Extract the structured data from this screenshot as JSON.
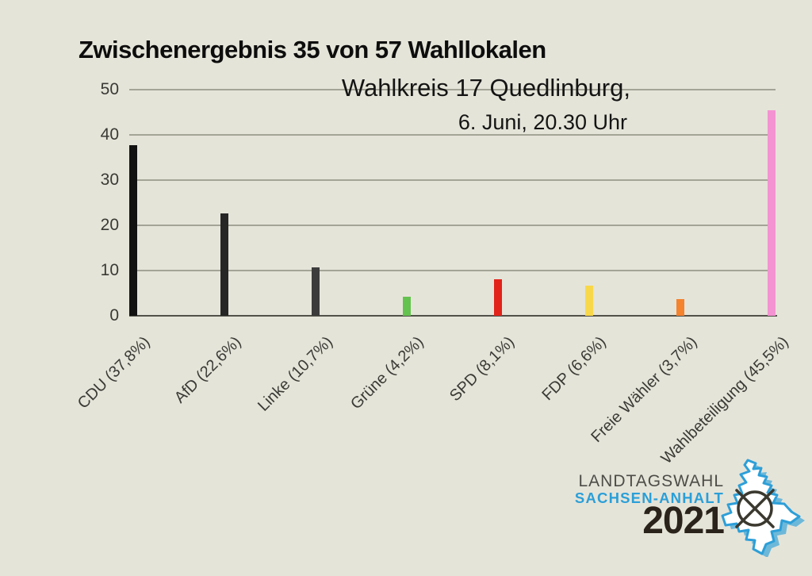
{
  "titles": {
    "main": "Zwischenergebnis 35 von 57 Wahllokalen",
    "subtitle": "Wahlkreis 17 Quedlinburg,",
    "datetime": "6. Juni, 20.30 Uhr"
  },
  "chart_data": {
    "type": "bar",
    "title": "Zwischenergebnis 35 von 57 Wahllokalen",
    "subtitle": "Wahlkreis 17 Quedlinburg, 6. Juni, 20.30 Uhr",
    "categories": [
      "CDU (37,8%)",
      "AfD (22,6%)",
      "Linke (10,7%)",
      "Grüne (4,2%)",
      "SPD (8,1%)",
      "FDP (6,6%)",
      "Freie Wähler (3,7%)",
      "Wahlbeteiligung (45,5%)"
    ],
    "values": [
      37.8,
      22.6,
      10.7,
      4.2,
      8.1,
      6.6,
      3.7,
      45.5
    ],
    "bar_colors": [
      "#121212",
      "#262626",
      "#3c3c3c",
      "#64c24e",
      "#e2231a",
      "#f8d84a",
      "#f5822d",
      "#f493d1"
    ],
    "yticks": [
      0,
      10,
      20,
      30,
      40,
      50
    ],
    "ylim": [
      0,
      50
    ],
    "xlabel": "",
    "ylabel": "",
    "grid": true,
    "legend": false
  },
  "logo": {
    "line1": "LANDTAGSWAHL",
    "line2": "SACHSEN-ANHALT",
    "year": "2021",
    "colors": {
      "line1": "#4d4c47",
      "line2": "#2a9fd8",
      "year": "#2a231b",
      "map": "#2d9fd8",
      "mark": "#3b392f"
    }
  },
  "colors": {
    "background": "#e5e4d9",
    "gridline": "#a3a396",
    "axis": "#51514a",
    "tick_text": "#3a3a35"
  }
}
